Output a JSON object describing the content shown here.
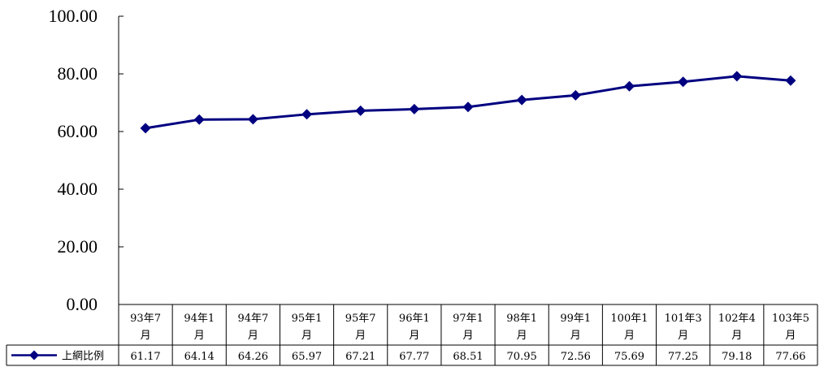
{
  "chart_data": {
    "type": "line",
    "categories": [
      [
        "93年7",
        "月"
      ],
      [
        "94年1",
        "月"
      ],
      [
        "94年7",
        "月"
      ],
      [
        "95年1",
        "月"
      ],
      [
        "95年7",
        "月"
      ],
      [
        "96年1",
        "月"
      ],
      [
        "97年1",
        "月"
      ],
      [
        "98年1",
        "月"
      ],
      [
        "99年1",
        "月"
      ],
      [
        "100年1",
        "月"
      ],
      [
        "101年3",
        "月"
      ],
      [
        "102年4",
        "月"
      ],
      [
        "103年5",
        "月"
      ]
    ],
    "series": [
      {
        "name": "上網比例",
        "values": [
          61.17,
          64.14,
          64.26,
          65.97,
          67.21,
          67.77,
          68.51,
          70.95,
          72.56,
          75.69,
          77.25,
          79.18,
          77.66
        ],
        "value_labels": [
          "61.17",
          "64.14",
          "64.26",
          "65.97",
          "67.21",
          "67.77",
          "68.51",
          "70.95",
          "72.56",
          "75.69",
          "77.25",
          "79.18",
          "77.66"
        ],
        "color": "#000080",
        "marker": "diamond"
      }
    ],
    "ylim": [
      0,
      100
    ],
    "yticks": [
      0,
      20,
      40,
      60,
      80,
      100
    ],
    "ytick_labels": [
      "0.00",
      "20.00",
      "40.00",
      "60.00",
      "80.00",
      "100.00"
    ],
    "data_table": true,
    "grid": false,
    "legend": "in data table"
  }
}
